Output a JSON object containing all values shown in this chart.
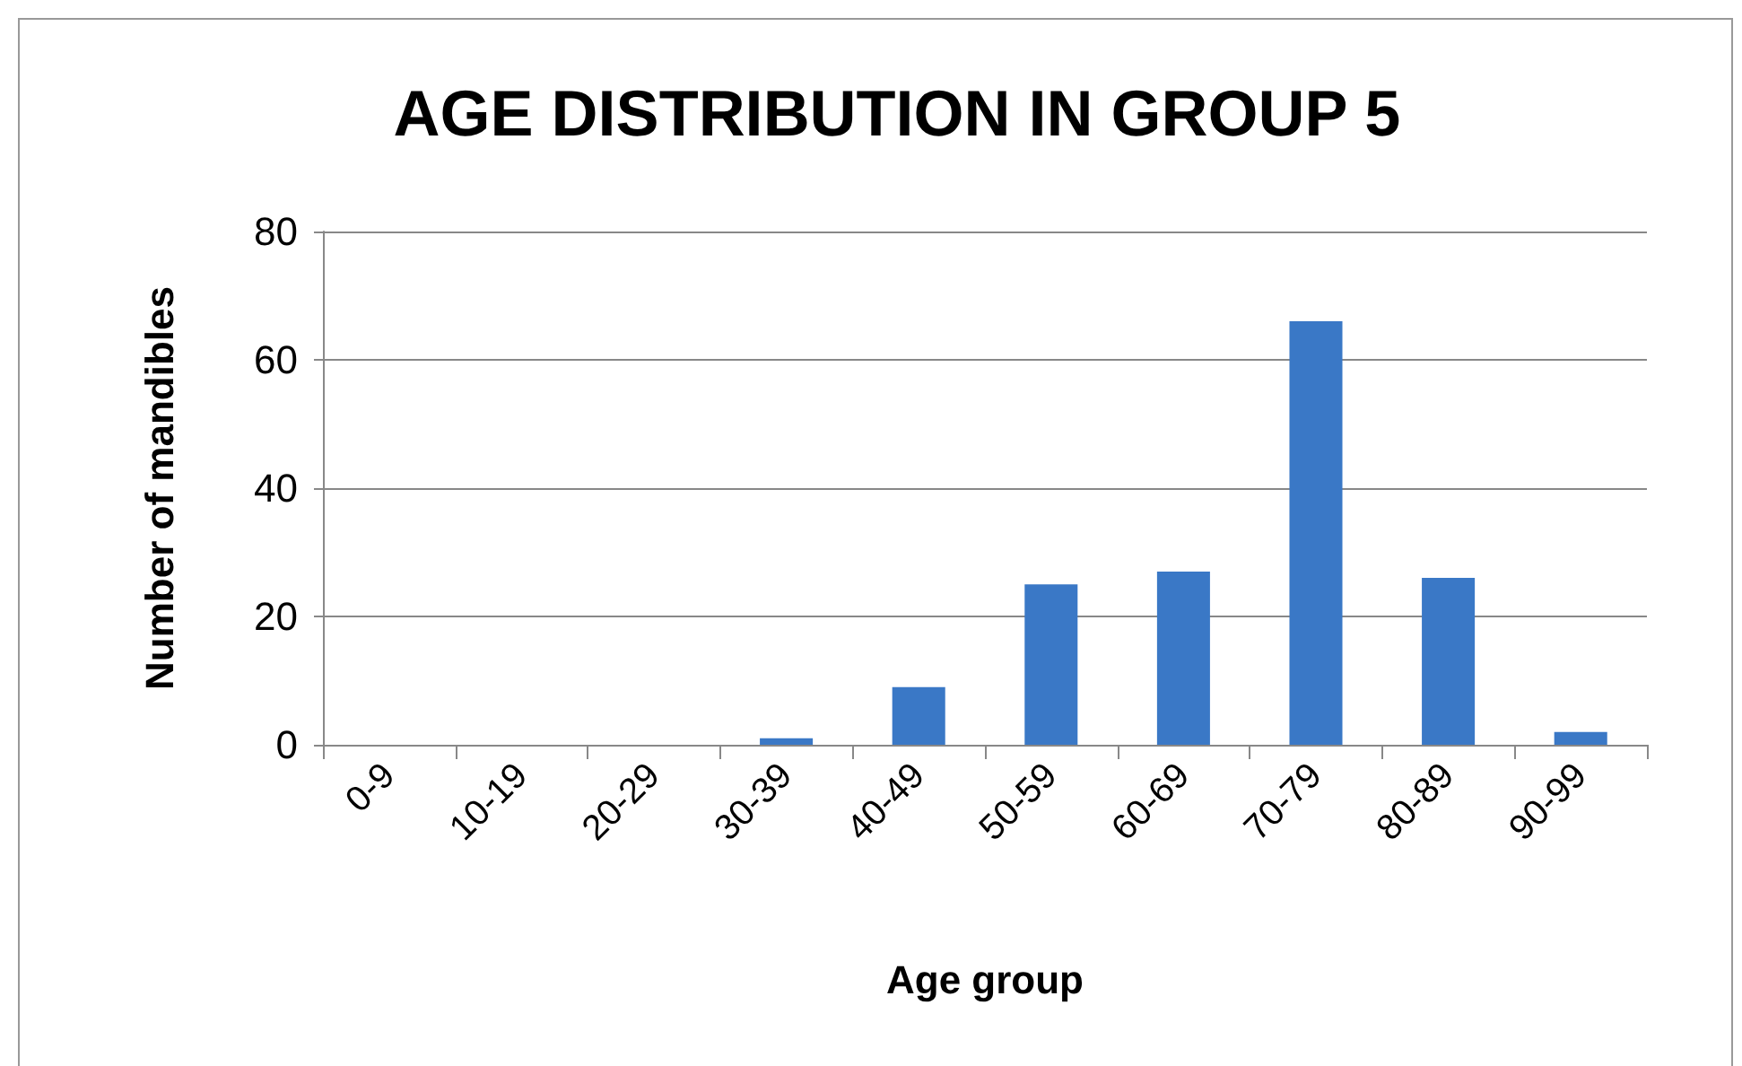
{
  "chart_data": {
    "type": "bar",
    "title": "AGE DISTRIBUTION IN GROUP 5",
    "xlabel": "Age group",
    "ylabel": "Number of mandibles",
    "categories": [
      "0-9",
      "10-19",
      "20-29",
      "30-39",
      "40-49",
      "50-59",
      "60-69",
      "70-79",
      "80-89",
      "90-99"
    ],
    "values": [
      0,
      0,
      0,
      1,
      9,
      25,
      27,
      66,
      26,
      2
    ],
    "color": "#3a78c6",
    "ylim": [
      0,
      80
    ],
    "yticks": [
      0,
      20,
      40,
      60,
      80
    ],
    "grid": "y"
  }
}
